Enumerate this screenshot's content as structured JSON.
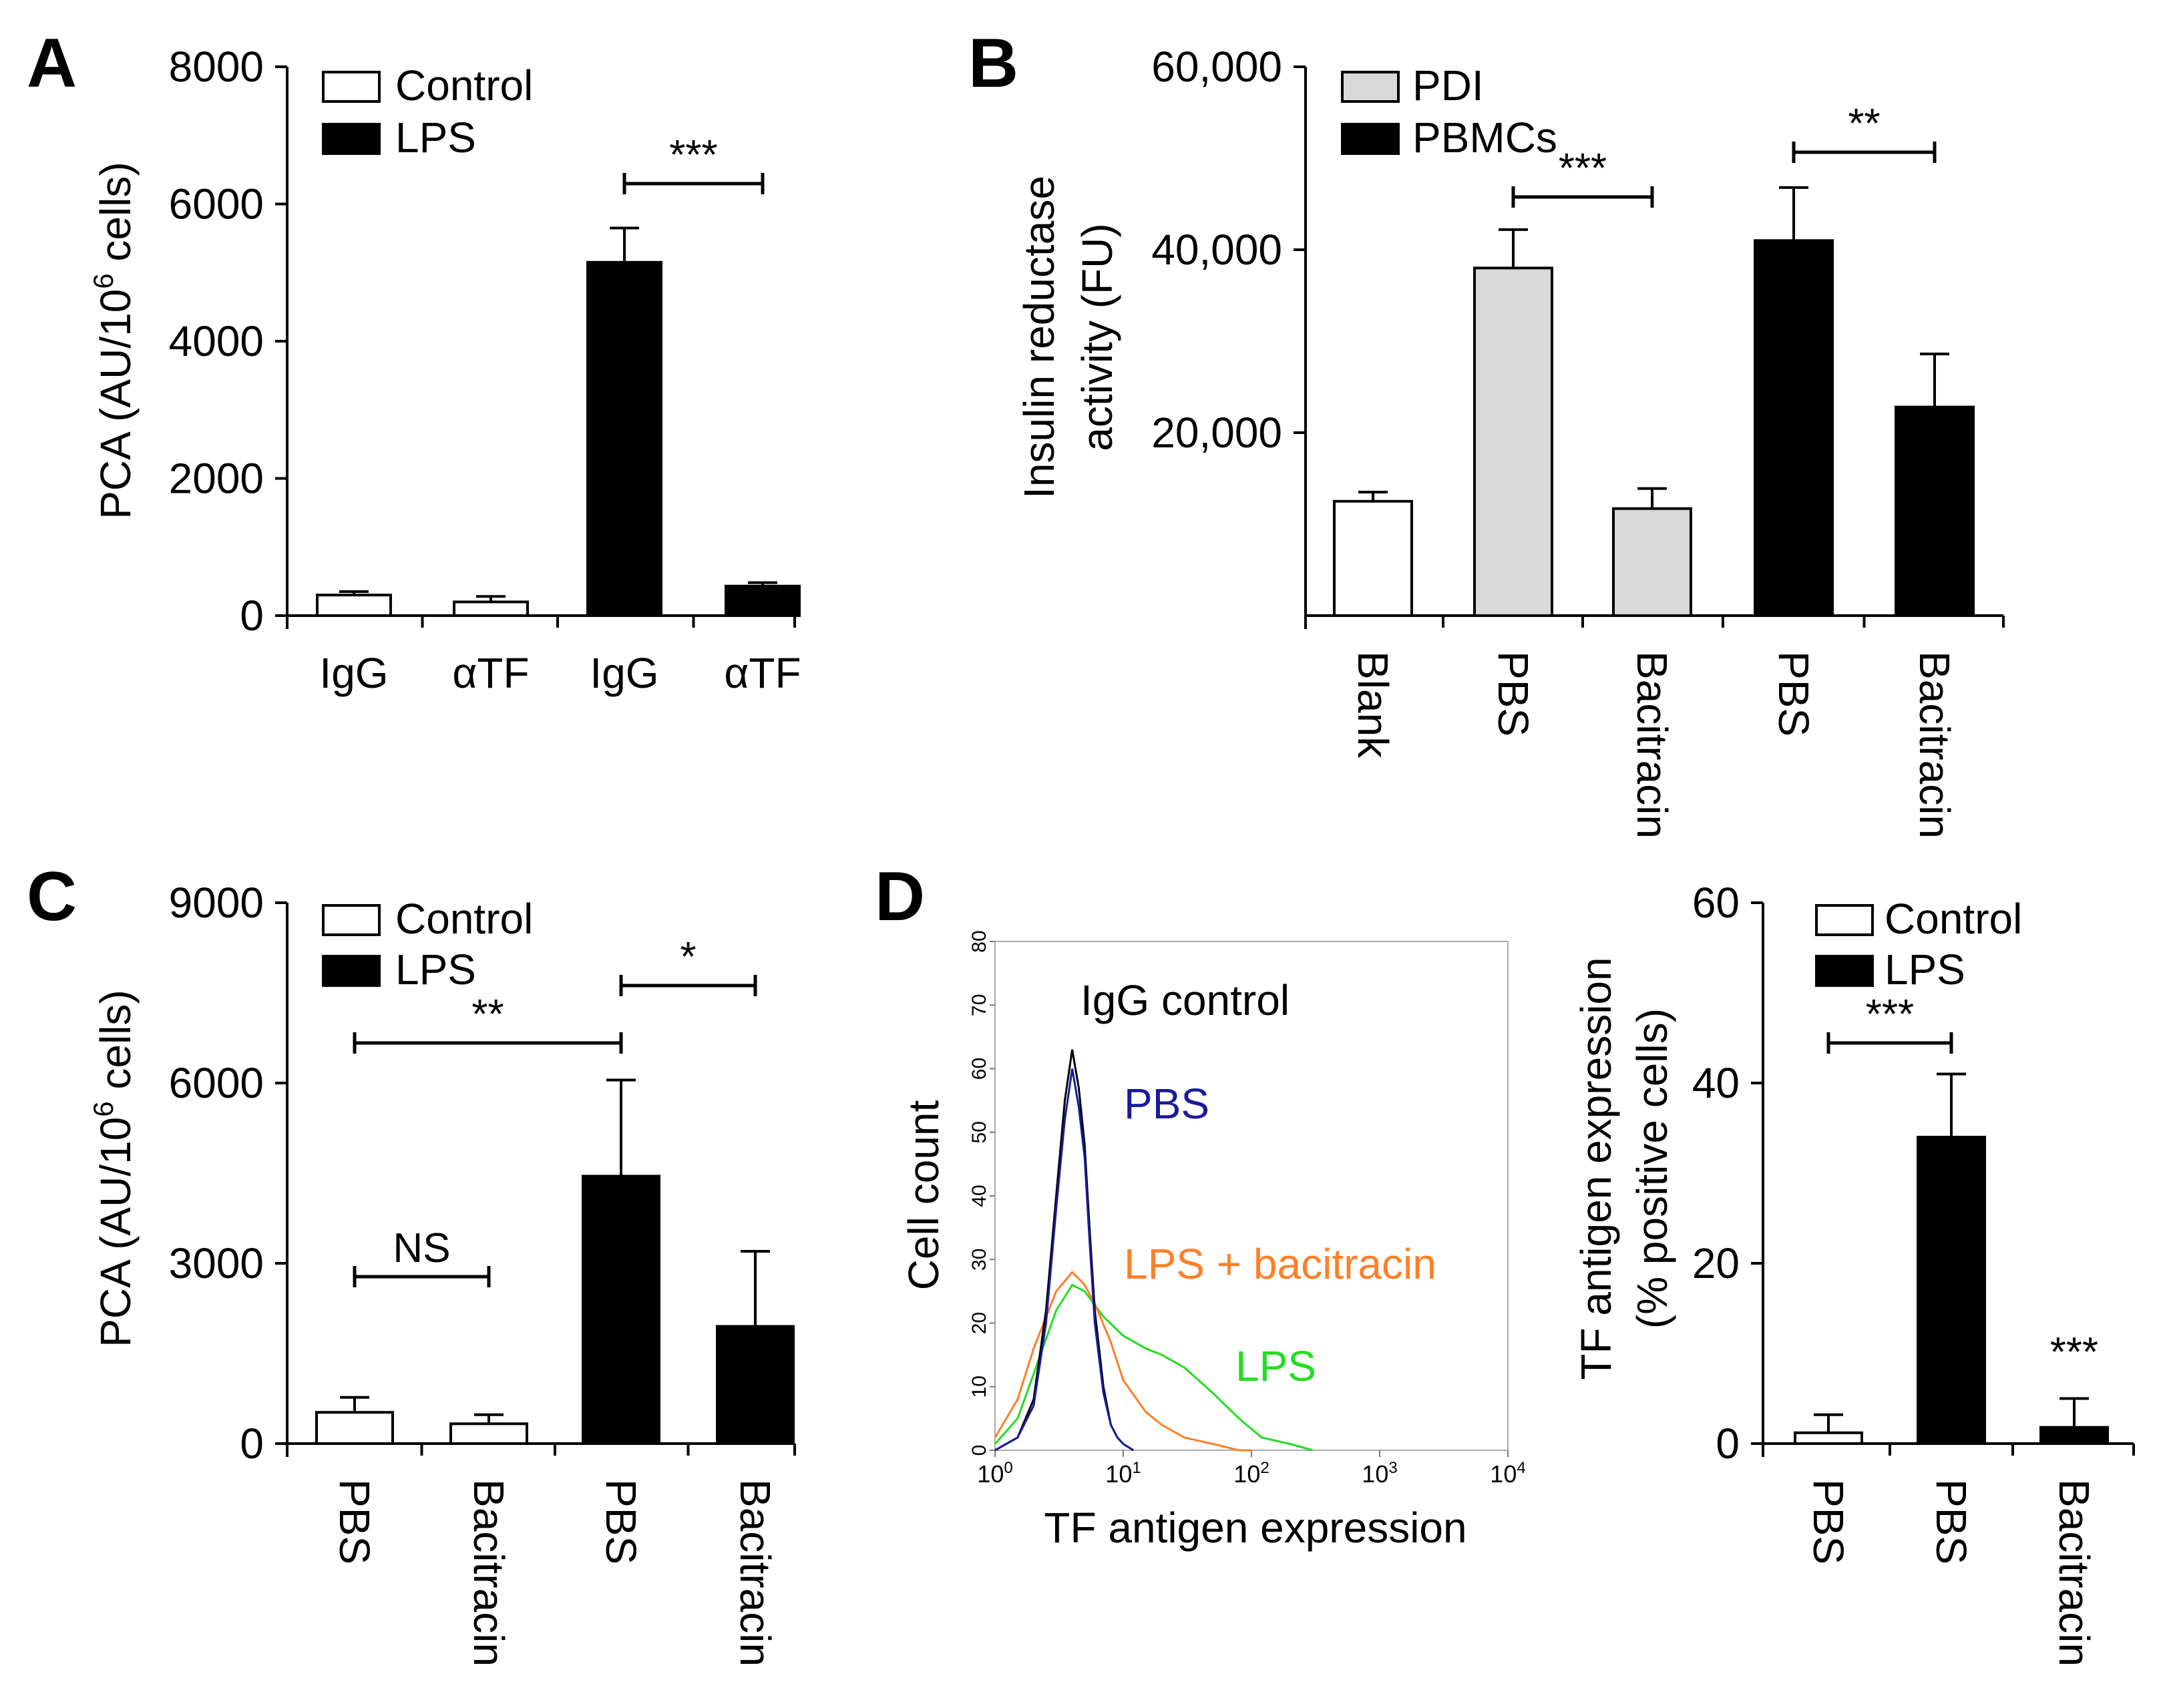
{
  "colors": {
    "white_bar": "#ffffff",
    "black_bar": "#000000",
    "gray_bar": "#d9d9d9",
    "pbs_line": "#1a1a9a",
    "lps_line": "#22dd22",
    "lps_bac_line": "#ff7f27",
    "igg_line": "#000000"
  },
  "panel_labels": [
    "A",
    "B",
    "C",
    "D"
  ],
  "chart_data": [
    {
      "panel": "A",
      "type": "bar",
      "ylabel_main": "PCA (AU/10",
      "ylabel_sup": "6",
      "ylabel_end": " cells)",
      "ylim": [
        0,
        8000
      ],
      "yticks": [
        "0",
        "2000",
        "4000",
        "6000",
        "8000"
      ],
      "ytick_values": [
        0,
        2000,
        4000,
        6000,
        8000
      ],
      "categories": [
        "IgG",
        "αTF",
        "IgG",
        "αTF"
      ],
      "values": [
        300,
        200,
        5150,
        430
      ],
      "errors": [
        50,
        80,
        500,
        50
      ],
      "groups": [
        "Control",
        "Control",
        "LPS",
        "LPS"
      ],
      "legend": [
        "Control",
        "LPS"
      ],
      "significance": [
        {
          "from": 2,
          "to": 3,
          "label": "***"
        }
      ]
    },
    {
      "panel": "B",
      "type": "bar",
      "ylabel_line1": "Insulin reductase",
      "ylabel_line2": "activity (FU)",
      "ylim": [
        0,
        60000
      ],
      "yticks": [
        "20,000",
        "40,000",
        "60,000"
      ],
      "ytick_values": [
        20000,
        40000,
        60000
      ],
      "categories": [
        "Blank",
        "PBS",
        "Bacitracin",
        "PBS",
        "Bacitracin"
      ],
      "values": [
        12500,
        38000,
        11700,
        41000,
        22800
      ],
      "errors": [
        1000,
        4200,
        2200,
        5800,
        5800
      ],
      "groups": [
        "Blank",
        "PDI",
        "PDI",
        "PBMCs",
        "PBMCs"
      ],
      "legend": [
        "PDI",
        "PBMCs"
      ],
      "significance": [
        {
          "from": 1,
          "to": 2,
          "label": "***"
        },
        {
          "from": 3,
          "to": 4,
          "label": "**"
        }
      ]
    },
    {
      "panel": "C",
      "type": "bar",
      "ylabel_main": "PCA (AU/10",
      "ylabel_sup": "6",
      "ylabel_end": " cells)",
      "ylim": [
        0,
        9000
      ],
      "yticks": [
        "0",
        "3000",
        "6000",
        "9000"
      ],
      "ytick_values": [
        0,
        3000,
        6000,
        9000
      ],
      "categories": [
        "PBS",
        "Bacitracin",
        "PBS",
        "Bacitracin"
      ],
      "values": [
        520,
        330,
        4450,
        1950
      ],
      "errors": [
        250,
        150,
        1600,
        1250
      ],
      "groups": [
        "Control",
        "Control",
        "LPS",
        "LPS"
      ],
      "legend": [
        "Control",
        "LPS"
      ],
      "significance": [
        {
          "from": 0,
          "to": 1,
          "label": "NS"
        },
        {
          "from": 0,
          "to": 2,
          "label": "**"
        },
        {
          "from": 2,
          "to": 3,
          "label": "*"
        }
      ]
    },
    {
      "panel": "D-histogram",
      "type": "line",
      "xscale": "log",
      "xlim": [
        1,
        10000
      ],
      "ylim": [
        0,
        80
      ],
      "xlabel": "TF antigen expression",
      "ylabel": "Cell count",
      "xtick_base": "10",
      "xtick_exponents": [
        "0",
        "1",
        "2",
        "3",
        "4"
      ],
      "yticks": [
        "0",
        "10",
        "20",
        "30",
        "40",
        "50",
        "60",
        "70",
        "80"
      ],
      "ytick_values": [
        0,
        10,
        20,
        30,
        40,
        50,
        60,
        70,
        80
      ],
      "series_labels": [
        "IgG control",
        "PBS",
        "LPS + bacitracin",
        "LPS"
      ],
      "series": [
        {
          "name": "IgG control",
          "x": [
            1,
            1.5,
            2,
            2.5,
            3,
            3.5,
            4,
            4.5,
            5,
            5.5,
            6,
            7,
            8,
            9,
            10,
            12
          ],
          "y": [
            0,
            2,
            8,
            22,
            40,
            55,
            63,
            57,
            48,
            34,
            22,
            10,
            4,
            2,
            1,
            0
          ]
        },
        {
          "name": "PBS",
          "x": [
            1,
            1.5,
            2,
            2.5,
            3,
            3.5,
            4,
            4.5,
            5,
            5.5,
            6,
            7,
            8,
            9,
            10,
            12
          ],
          "y": [
            0,
            2,
            7,
            20,
            38,
            52,
            60,
            54,
            46,
            32,
            20,
            9,
            4,
            2,
            1,
            0
          ]
        },
        {
          "name": "LPS + bacitracin",
          "x": [
            1,
            1.5,
            2,
            3,
            4,
            5,
            6,
            8,
            10,
            15,
            20,
            30,
            50,
            80,
            100
          ],
          "y": [
            2,
            8,
            16,
            25,
            28,
            26,
            23,
            17,
            11,
            6,
            4,
            2,
            1,
            0,
            0
          ]
        },
        {
          "name": "LPS",
          "x": [
            1,
            1.5,
            2,
            3,
            4,
            5,
            7,
            10,
            15,
            20,
            30,
            50,
            80,
            120,
            200,
            300
          ],
          "y": [
            1,
            5,
            12,
            22,
            26,
            25,
            21,
            18,
            16,
            15,
            13,
            9,
            5,
            2,
            1,
            0
          ]
        }
      ]
    },
    {
      "panel": "D-bar",
      "type": "bar",
      "ylabel_line1": "TF antigen expression",
      "ylabel_line2": "(% positive cells)",
      "ylim": [
        0,
        60
      ],
      "yticks": [
        "0",
        "20",
        "40",
        "60"
      ],
      "ytick_values": [
        0,
        20,
        40,
        60
      ],
      "categories": [
        "PBS",
        "PBS",
        "Bacitracin"
      ],
      "values": [
        1.2,
        34,
        1.8
      ],
      "errors": [
        2,
        7,
        3.2
      ],
      "groups": [
        "Control",
        "LPS",
        "LPS"
      ],
      "legend": [
        "Control",
        "LPS"
      ],
      "significance": [
        {
          "from": 0,
          "to": 1,
          "label": "***"
        },
        {
          "above": 2,
          "label": "***"
        }
      ]
    }
  ]
}
